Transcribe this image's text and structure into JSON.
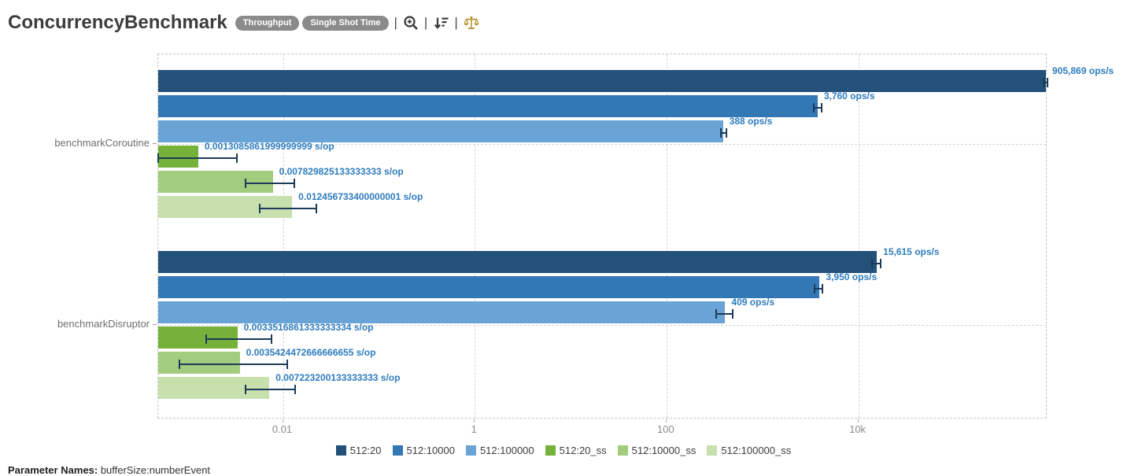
{
  "header": {
    "title": "ConcurrencyBenchmark",
    "badges": [
      "Throughput",
      "Single Shot Time"
    ],
    "icons": [
      "zoom-in-icon",
      "sort-descending-icon",
      "scales-icon"
    ],
    "icon_colors": {
      "zoom": "#3a3a3a",
      "sort": "#3a3a3a",
      "scales": "#b5922b"
    }
  },
  "chart_data": {
    "type": "bar",
    "orientation": "horizontal",
    "x_scale": "log",
    "x_range": [
      0.0005,
      940000
    ],
    "x_ticks": [
      {
        "value": 0.01,
        "label": "0.01"
      },
      {
        "value": 1,
        "label": "1"
      },
      {
        "value": 100,
        "label": "100"
      },
      {
        "value": 10000,
        "label": "10k"
      }
    ],
    "grid": true,
    "legend_position": "bottom",
    "series_names": [
      "512:20",
      "512:10000",
      "512:100000",
      "512:20_ss",
      "512:10000_ss",
      "512:100000_ss"
    ],
    "series_colors": [
      "#245179",
      "#3178b4",
      "#6aa3d5",
      "#76b23a",
      "#a3cd7e",
      "#c8e0ae"
    ],
    "value_label_color": "#2e7cbf",
    "error_bar_color": "#1c3b5a",
    "groups": [
      {
        "label": "benchmarkCoroutine",
        "bars": [
          {
            "series": "512:20",
            "value": 905869,
            "label": "905,869 ops/s",
            "error_low": 850000,
            "error_high": 975000
          },
          {
            "series": "512:10000",
            "value": 3760,
            "label": "3,760 ops/s",
            "error_low": 3450,
            "error_high": 4150
          },
          {
            "series": "512:100000",
            "value": 388,
            "label": "388 ops/s",
            "error_low": 370,
            "error_high": 420
          },
          {
            "series": "512:20_ss",
            "value": 0.0013085861999999999,
            "label": "0.0013085861999999999 s/op",
            "error_low": 0.0004,
            "error_high": 0.0033
          },
          {
            "series": "512:10000_ss",
            "value": 0.007829825133333333,
            "label": "0.007829825133333333 s/op",
            "error_low": 0.0041,
            "error_high": 0.0131
          },
          {
            "series": "512:100000_ss",
            "value": 0.012456733400000001,
            "label": "0.012456733400000001 s/op",
            "error_low": 0.0057,
            "error_high": 0.0222
          }
        ]
      },
      {
        "label": "benchmarkDisruptor",
        "bars": [
          {
            "series": "512:20",
            "value": 15615,
            "label": "15,615 ops/s",
            "error_low": 14000,
            "error_high": 17000
          },
          {
            "series": "512:10000",
            "value": 3950,
            "label": "3,950 ops/s",
            "error_low": 3500,
            "error_high": 4200
          },
          {
            "series": "512:100000",
            "value": 409,
            "label": "409 ops/s",
            "error_low": 330,
            "error_high": 490
          },
          {
            "series": "512:20_ss",
            "value": 0.0033516861333333335,
            "label": "0.0033516861333333334 s/op",
            "error_low": 0.00157,
            "error_high": 0.0076
          },
          {
            "series": "512:10000_ss",
            "value": 0.0035424472666666655,
            "label": "0.0035424472666666655 s/op",
            "error_low": 0.00083,
            "error_high": 0.011
          },
          {
            "series": "512:100000_ss",
            "value": 0.007223200133333333,
            "label": "0.007223200133333333 s/op",
            "error_low": 0.0041,
            "error_high": 0.0134
          }
        ]
      }
    ],
    "units": {
      "throughput": "ops/s",
      "single_shot_time": "s/op"
    }
  },
  "footer": {
    "label": "Parameter Names:",
    "value": "bufferSize:numberEvent"
  }
}
